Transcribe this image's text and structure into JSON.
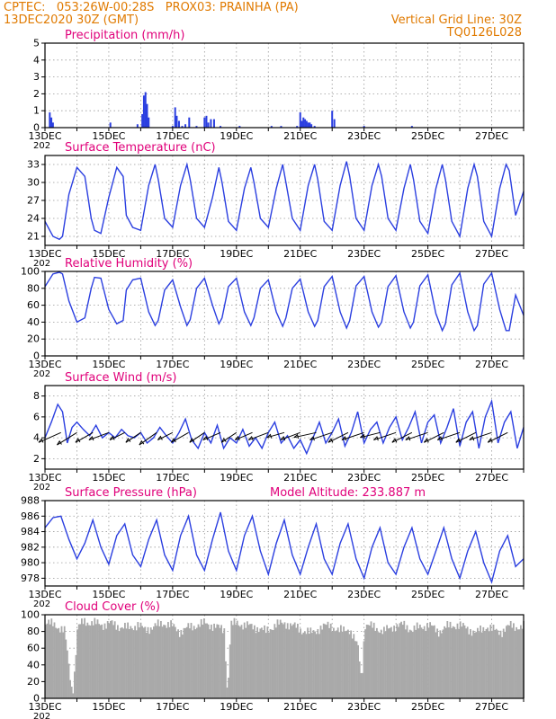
{
  "header": {
    "line1_left": "CPTEC:   053:26W-00:28S   PROX03: PRAINHA (PA)",
    "line2_left": "13DEC2020 30Z (GMT)",
    "line2_right": "Vertical Grid Line: 30Z",
    "line3_right": "TQ0126L028"
  },
  "colors": {
    "header": "#e07a00",
    "title": "#e0007a",
    "series": "#2b3fe0",
    "cloud": "#a9a9a9",
    "wind_arrow": "#000000"
  },
  "x_axis": {
    "labels": [
      "13DEC",
      "15DEC",
      "17DEC",
      "19DEC",
      "21DEC",
      "23DEC",
      "25DEC",
      "27DEC"
    ],
    "year_fragment": "202",
    "start_day": 13,
    "end_day": 28
  },
  "chart_data": [
    {
      "type": "bar",
      "title": "Precipitation (mm/h)",
      "ylim": [
        0,
        5
      ],
      "yticks": [
        0,
        1,
        2,
        3,
        4,
        5
      ],
      "series": [
        {
          "x": [
            13.15,
            13.2,
            13.25,
            15.05,
            15.9,
            16.05,
            16.1,
            16.15,
            16.2,
            16.25,
            17.0,
            17.08,
            17.13,
            17.2,
            17.3,
            17.4,
            17.52,
            17.75,
            18.0,
            18.06,
            18.12,
            18.2,
            18.3,
            18.5,
            19.1,
            20.1,
            20.4,
            20.9,
            21.0,
            21.05,
            21.1,
            21.15,
            21.2,
            21.25,
            21.3,
            21.35,
            21.45,
            22.0,
            22.07,
            23.0,
            24.5
          ],
          "values": [
            0.9,
            0.6,
            0.3,
            0.3,
            0.2,
            0.8,
            1.9,
            2.1,
            1.4,
            0.6,
            0.1,
            1.2,
            0.7,
            0.4,
            0.1,
            0.2,
            0.6,
            0.1,
            0.6,
            0.7,
            0.3,
            0.5,
            0.5,
            0.1,
            0.1,
            0.1,
            0.1,
            0.1,
            0.9,
            0.4,
            0.6,
            0.5,
            0.4,
            0.3,
            0.3,
            0.2,
            0.1,
            1.0,
            0.5,
            0.1,
            0.1
          ]
        }
      ]
    },
    {
      "type": "line",
      "title": "Surface Temperature (nC)",
      "ylim": [
        19.5,
        34.5
      ],
      "yticks": [
        21,
        24,
        27,
        30,
        33
      ],
      "series": [
        {
          "x": [
            13.0,
            13.25,
            13.45,
            13.55,
            13.75,
            14.0,
            14.25,
            14.45,
            14.55,
            14.75,
            15.0,
            15.25,
            15.45,
            15.55,
            15.75,
            16.0,
            16.25,
            16.45,
            16.55,
            16.75,
            17.0,
            17.25,
            17.45,
            17.55,
            17.75,
            18.0,
            18.25,
            18.45,
            18.55,
            18.75,
            19.0,
            19.25,
            19.45,
            19.55,
            19.75,
            20.0,
            20.25,
            20.45,
            20.55,
            20.75,
            21.0,
            21.25,
            21.45,
            21.55,
            21.75,
            22.0,
            22.25,
            22.45,
            22.55,
            22.75,
            23.0,
            23.25,
            23.45,
            23.55,
            23.75,
            24.0,
            24.25,
            24.45,
            24.55,
            24.75,
            25.0,
            25.25,
            25.45,
            25.55,
            25.75,
            26.0,
            26.25,
            26.45,
            26.55,
            26.75,
            27.0,
            27.25,
            27.45,
            27.55,
            27.75,
            28.0
          ],
          "values": [
            23.5,
            21.0,
            20.5,
            21.0,
            28.0,
            32.5,
            31.0,
            24.0,
            22.0,
            21.5,
            27.5,
            32.5,
            31.0,
            24.5,
            22.5,
            22.0,
            29.5,
            33.0,
            30.5,
            24.0,
            22.5,
            29.5,
            33.0,
            30.5,
            24.0,
            22.5,
            27.5,
            32.5,
            30.0,
            23.5,
            22.0,
            29.0,
            32.5,
            30.0,
            24.0,
            22.5,
            29.0,
            33.0,
            30.0,
            24.0,
            22.0,
            29.5,
            33.0,
            30.5,
            23.5,
            22.0,
            29.5,
            33.5,
            31.0,
            24.0,
            22.0,
            29.5,
            33.0,
            31.0,
            24.0,
            22.0,
            29.0,
            33.0,
            30.5,
            23.5,
            21.5,
            29.0,
            33.0,
            30.5,
            23.5,
            21.0,
            29.0,
            33.0,
            31.0,
            23.5,
            21.0,
            29.0,
            33.0,
            32.0,
            24.5,
            28.5
          ]
        }
      ]
    },
    {
      "type": "line",
      "title": "Relative Humidity (%)",
      "ylim": [
        0,
        100
      ],
      "yticks": [
        0,
        20,
        40,
        60,
        80,
        100
      ],
      "series": [
        {
          "x": [
            13.0,
            13.25,
            13.45,
            13.55,
            13.75,
            14.0,
            14.25,
            14.45,
            14.55,
            14.75,
            15.0,
            15.25,
            15.45,
            15.55,
            15.75,
            16.0,
            16.25,
            16.45,
            16.55,
            16.75,
            17.0,
            17.25,
            17.45,
            17.55,
            17.75,
            18.0,
            18.25,
            18.45,
            18.55,
            18.75,
            19.0,
            19.25,
            19.45,
            19.55,
            19.75,
            20.0,
            20.25,
            20.45,
            20.55,
            20.75,
            21.0,
            21.25,
            21.45,
            21.55,
            21.75,
            22.0,
            22.25,
            22.45,
            22.55,
            22.75,
            23.0,
            23.25,
            23.45,
            23.55,
            23.75,
            24.0,
            24.25,
            24.45,
            24.55,
            24.75,
            25.0,
            25.25,
            25.45,
            25.55,
            25.75,
            26.0,
            26.25,
            26.45,
            26.55,
            26.75,
            27.0,
            27.25,
            27.45,
            27.55,
            27.75,
            28.0
          ],
          "values": [
            82,
            97,
            99,
            97,
            65,
            40,
            45,
            80,
            93,
            92,
            55,
            38,
            42,
            78,
            90,
            92,
            52,
            36,
            42,
            78,
            90,
            58,
            36,
            43,
            80,
            92,
            60,
            38,
            45,
            82,
            92,
            52,
            36,
            45,
            80,
            90,
            52,
            35,
            45,
            80,
            91,
            52,
            35,
            42,
            82,
            94,
            52,
            33,
            42,
            83,
            94,
            52,
            34,
            40,
            82,
            95,
            52,
            33,
            40,
            83,
            96,
            50,
            30,
            38,
            84,
            98,
            52,
            30,
            36,
            85,
            98,
            55,
            30,
            30,
            72,
            48
          ]
        }
      ]
    },
    {
      "type": "line",
      "title": "Surface Wind (m/s)",
      "ylim": [
        1,
        9
      ],
      "yticks": [
        2,
        4,
        6,
        8
      ],
      "series": [
        {
          "x": [
            13.0,
            13.2,
            13.4,
            13.55,
            13.7,
            13.85,
            14.0,
            14.2,
            14.4,
            14.6,
            14.8,
            15.0,
            15.2,
            15.4,
            15.6,
            15.8,
            16.0,
            16.2,
            16.4,
            16.6,
            16.8,
            17.0,
            17.2,
            17.4,
            17.6,
            17.8,
            18.0,
            18.2,
            18.4,
            18.6,
            18.8,
            19.0,
            19.2,
            19.4,
            19.6,
            19.8,
            20.0,
            20.2,
            20.4,
            20.6,
            20.8,
            21.0,
            21.2,
            21.4,
            21.6,
            21.8,
            22.0,
            22.2,
            22.4,
            22.6,
            22.8,
            23.0,
            23.2,
            23.4,
            23.6,
            23.8,
            24.0,
            24.2,
            24.4,
            24.6,
            24.8,
            25.0,
            25.2,
            25.4,
            25.6,
            25.8,
            26.0,
            26.2,
            26.4,
            26.6,
            26.8,
            27.0,
            27.2,
            27.4,
            27.6,
            27.8,
            28.0
          ],
          "values": [
            4.0,
            5.5,
            7.2,
            6.5,
            3.5,
            5.0,
            5.5,
            4.8,
            4.2,
            5.2,
            4.0,
            4.5,
            4.0,
            4.8,
            4.2,
            4.0,
            4.5,
            3.5,
            4.0,
            5.0,
            4.2,
            3.5,
            4.5,
            5.8,
            3.8,
            3.0,
            4.5,
            3.5,
            5.2,
            3.0,
            4.0,
            3.5,
            4.8,
            3.2,
            4.0,
            3.0,
            4.5,
            5.5,
            3.5,
            4.2,
            3.0,
            3.8,
            2.5,
            4.0,
            5.5,
            3.5,
            4.5,
            5.8,
            3.2,
            4.5,
            6.5,
            3.5,
            4.8,
            5.5,
            3.5,
            5.0,
            6.0,
            3.8,
            5.0,
            6.5,
            3.5,
            5.5,
            6.2,
            3.5,
            5.0,
            6.8,
            3.2,
            5.5,
            6.5,
            3.0,
            6.0,
            7.5,
            3.5,
            5.5,
            6.5,
            3.0,
            5.0
          ]
        }
      ],
      "wind_vectors": {
        "x": [
          13.5,
          14.0,
          14.5,
          15.0,
          15.5,
          16.0,
          16.5,
          17.0,
          17.5,
          18.0,
          18.5,
          19.0,
          19.5,
          20.0,
          20.5,
          21.0,
          21.5,
          22.0,
          22.5,
          23.0,
          23.5,
          24.0,
          24.5,
          25.0,
          25.5,
          26.0,
          26.5,
          27.0,
          27.5
        ],
        "u": [
          -4.5,
          -4.0,
          -3.5,
          -4.0,
          -3.0,
          -3.0,
          -3.5,
          -3.0,
          -3.5,
          -3.0,
          -3.5,
          -3.0,
          -3.5,
          -4.0,
          -3.5,
          -4.0,
          -4.5,
          -4.5,
          -4.0,
          -4.5,
          -4.0,
          -4.5,
          -4.0,
          -4.5,
          -4.0,
          -4.5,
          -4.0,
          -4.5,
          -4.0
        ],
        "v": [
          -2.0,
          -2.5,
          -2.0,
          -1.5,
          -1.5,
          -2.0,
          -2.5,
          -1.5,
          -2.0,
          -2.0,
          -1.5,
          -2.0,
          -1.5,
          -1.5,
          -1.0,
          -1.5,
          -1.0,
          -1.5,
          -2.0,
          -1.5,
          -1.0,
          -1.5,
          -2.0,
          -1.5,
          -2.0,
          -1.5,
          -2.0,
          -1.5,
          -2.0
        ]
      }
    },
    {
      "type": "line",
      "title": "Surface Pressure (hPa)",
      "subtitle": "Model Altitude: 233.887 m",
      "ylim": [
        977,
        988
      ],
      "yticks": [
        978,
        980,
        982,
        984,
        986,
        988
      ],
      "series": [
        {
          "x": [
            13.0,
            13.25,
            13.5,
            13.75,
            14.0,
            14.25,
            14.5,
            14.75,
            15.0,
            15.25,
            15.5,
            15.75,
            16.0,
            16.25,
            16.5,
            16.75,
            17.0,
            17.25,
            17.5,
            17.75,
            18.0,
            18.25,
            18.5,
            18.75,
            19.0,
            19.25,
            19.5,
            19.75,
            20.0,
            20.25,
            20.5,
            20.75,
            21.0,
            21.25,
            21.5,
            21.75,
            22.0,
            22.25,
            22.5,
            22.75,
            23.0,
            23.25,
            23.5,
            23.75,
            24.0,
            24.25,
            24.5,
            24.75,
            25.0,
            25.25,
            25.5,
            25.75,
            26.0,
            26.25,
            26.5,
            26.75,
            27.0,
            27.25,
            27.5,
            27.75,
            28.0
          ],
          "values": [
            984.5,
            985.8,
            986.0,
            983.0,
            980.5,
            982.5,
            985.5,
            982.0,
            979.8,
            983.5,
            985.0,
            981.0,
            979.5,
            983.0,
            985.5,
            981.0,
            979.0,
            983.5,
            986.0,
            981.0,
            979.0,
            983.0,
            986.5,
            981.5,
            979.0,
            983.5,
            986.0,
            981.5,
            978.5,
            982.5,
            985.5,
            981.0,
            978.5,
            982.0,
            985.0,
            980.5,
            978.5,
            982.5,
            985.0,
            980.5,
            978.0,
            982.0,
            984.5,
            980.0,
            978.5,
            982.0,
            984.5,
            980.5,
            978.5,
            981.5,
            984.5,
            980.5,
            978.0,
            981.5,
            984.0,
            980.0,
            977.5,
            981.5,
            983.5,
            979.5,
            980.5
          ]
        }
      ]
    },
    {
      "type": "area",
      "title": "Cloud Cover (%)",
      "ylim": [
        0,
        100
      ],
      "yticks": [
        0,
        20,
        40,
        60,
        80,
        100
      ],
      "series": [
        {
          "x": [
            13.0,
            13.3,
            13.6,
            13.75,
            13.85,
            14.0,
            14.2,
            14.5,
            14.8,
            15.0,
            15.3,
            15.6,
            15.9,
            16.1,
            16.4,
            16.7,
            16.9,
            17.2,
            17.5,
            17.8,
            18.0,
            18.3,
            18.6,
            18.7,
            18.8,
            19.0,
            19.3,
            19.6,
            19.9,
            20.2,
            20.5,
            20.8,
            21.0,
            21.3,
            21.6,
            21.9,
            22.2,
            22.5,
            22.8,
            22.9,
            23.0,
            23.3,
            23.6,
            23.9,
            24.2,
            24.5,
            24.8,
            25.0,
            25.3,
            25.6,
            25.9,
            26.2,
            26.5,
            26.8,
            27.0,
            27.3,
            27.6,
            27.9,
            28.0
          ],
          "values": [
            90,
            88,
            80,
            30,
            2,
            85,
            92,
            90,
            88,
            90,
            86,
            84,
            88,
            82,
            86,
            90,
            88,
            80,
            85,
            88,
            90,
            86,
            82,
            1,
            88,
            90,
            87,
            85,
            80,
            88,
            90,
            86,
            82,
            78,
            84,
            88,
            80,
            84,
            60,
            20,
            88,
            85,
            80,
            86,
            88,
            82,
            86,
            88,
            80,
            86,
            88,
            84,
            78,
            86,
            82,
            80,
            88,
            84,
            86
          ]
        }
      ]
    }
  ]
}
